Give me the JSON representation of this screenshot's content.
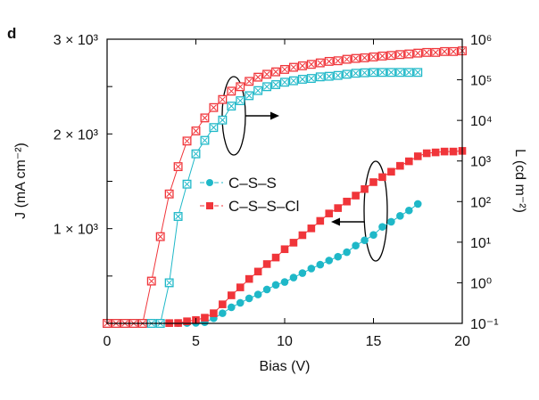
{
  "chart_data": {
    "type": "scatter",
    "panel_label": "d",
    "xlabel": "Bias (V)",
    "ylabel_left": "J (mA cm⁻²)",
    "ylabel_right": "L (cd m⁻²)",
    "xlim": [
      0,
      20
    ],
    "ylim_left": [
      0,
      3000
    ],
    "ylim_right": [
      0.1,
      1000000
    ],
    "right_axis_scale": "log",
    "grid": false,
    "legend_placement": "center",
    "x_ticks": [
      "0",
      "5",
      "10",
      "15",
      "20"
    ],
    "x_tick_values": [
      0,
      5,
      10,
      15,
      20
    ],
    "left_ticks": [
      "1 × 10³",
      "2 × 10³",
      "3 × 10³"
    ],
    "left_tick_values": [
      1000,
      2000,
      3000
    ],
    "right_ticks": [
      "10⁻¹",
      "10⁰",
      "10¹",
      "10²",
      "10³",
      "10⁴",
      "10⁵",
      "10⁶"
    ],
    "right_tick_values": [
      0.1,
      1,
      10,
      100,
      1000,
      10000,
      100000,
      1000000
    ],
    "colors": {
      "C-S-S": "#1fb8c8",
      "C-S-S-Cl": "#f0353a"
    },
    "series": [
      {
        "name": "C–S–S",
        "key": "C-S-S",
        "quantity": "J",
        "axis": "left",
        "marker": "filled-circle",
        "x": [
          0,
          0.5,
          1,
          1.5,
          2,
          2.5,
          3,
          3.5,
          4,
          4.5,
          5,
          5.5,
          6,
          6.5,
          7,
          7.5,
          8,
          8.5,
          9,
          9.5,
          10,
          10.5,
          11,
          11.5,
          12,
          12.5,
          13,
          13.5,
          14,
          14.5,
          15,
          15.5,
          16,
          16.5,
          17,
          17.5
        ],
        "y": [
          3,
          3,
          3,
          3,
          3,
          3,
          3,
          3,
          3,
          4,
          5,
          12,
          54,
          107,
          170,
          217,
          264,
          305,
          358,
          406,
          437,
          484,
          531,
          579,
          620,
          664,
          704,
          752,
          821,
          877,
          934,
          1019,
          1073,
          1135,
          1192,
          1261
        ]
      },
      {
        "name": "C–S–S–Cl",
        "key": "C-S-S-Cl",
        "quantity": "J",
        "axis": "left",
        "marker": "filled-square",
        "x": [
          0,
          0.5,
          1,
          1.5,
          2,
          2.5,
          3,
          3.5,
          4,
          4.5,
          5,
          5.5,
          6,
          6.5,
          7,
          7.5,
          8,
          8.5,
          9,
          9.5,
          10,
          10.5,
          11,
          11.5,
          12,
          12.5,
          13,
          13.5,
          14,
          14.5,
          15,
          15.5,
          16,
          16.5,
          17,
          17.5,
          18,
          18.5,
          19,
          19.5,
          20
        ],
        "y": [
          3,
          3,
          3,
          3,
          3,
          3,
          3,
          3,
          4,
          22,
          35,
          60,
          107,
          201,
          296,
          380,
          469,
          547,
          626,
          695,
          783,
          852,
          931,
          1003,
          1082,
          1160,
          1217,
          1286,
          1349,
          1418,
          1491,
          1544,
          1601,
          1663,
          1711,
          1764,
          1796,
          1805,
          1814,
          1814,
          1821
        ]
      },
      {
        "key": "C-S-S",
        "quantity": "L",
        "axis": "right",
        "marker": "crossed-square",
        "x": [
          0,
          0.5,
          1,
          1.5,
          2,
          2.5,
          3,
          3.5,
          4,
          4.5,
          5,
          5.5,
          6,
          6.5,
          7,
          7.5,
          8,
          8.5,
          9,
          9.5,
          10,
          10.5,
          11,
          11.5,
          12,
          12.5,
          13,
          13.5,
          14,
          14.5,
          15,
          15.5,
          16,
          16.5,
          17,
          17.5
        ],
        "y": [
          0.1,
          0.1,
          0.1,
          0.1,
          0.1,
          0.1,
          0.1,
          1.0,
          43,
          269,
          1500,
          3220,
          6670,
          10200,
          22500,
          30500,
          40600,
          54200,
          67600,
          76000,
          87100,
          94600,
          103000,
          108000,
          118000,
          122000,
          128000,
          137000,
          145000,
          149000,
          152000,
          152000,
          152000,
          152000,
          152000,
          152000
        ]
      },
      {
        "key": "C-S-S-Cl",
        "quantity": "L",
        "axis": "right",
        "marker": "crossed-square",
        "x": [
          0,
          0.5,
          1,
          1.5,
          2,
          2.5,
          3,
          3.5,
          4,
          4.5,
          5,
          5.5,
          6,
          6.5,
          7,
          7.5,
          8,
          8.5,
          9,
          9.5,
          10,
          10.5,
          11,
          11.5,
          12,
          12.5,
          13,
          13.5,
          14,
          14.5,
          15,
          15.5,
          16,
          16.5,
          17,
          17.5,
          18,
          18.5,
          19,
          19.5,
          20
        ],
        "y": [
          0.1,
          0.1,
          0.1,
          0.1,
          0.1,
          1.1,
          13.7,
          154,
          725,
          3100,
          5500,
          11500,
          20700,
          32700,
          52500,
          67600,
          91600,
          116000,
          137000,
          157000,
          180000,
          203000,
          221000,
          240000,
          261000,
          284000,
          294000,
          320000,
          336000,
          348000,
          366000,
          385000,
          398000,
          418000,
          433000,
          454000,
          472000,
          472000,
          497000,
          497000,
          515000
        ]
      }
    ],
    "legend": [
      {
        "label": "C–S–S",
        "key": "C-S-S",
        "marker": "filled-circle"
      },
      {
        "label": "C–S–S–Cl",
        "key": "C-S-S-Cl",
        "marker": "filled-square"
      }
    ]
  }
}
